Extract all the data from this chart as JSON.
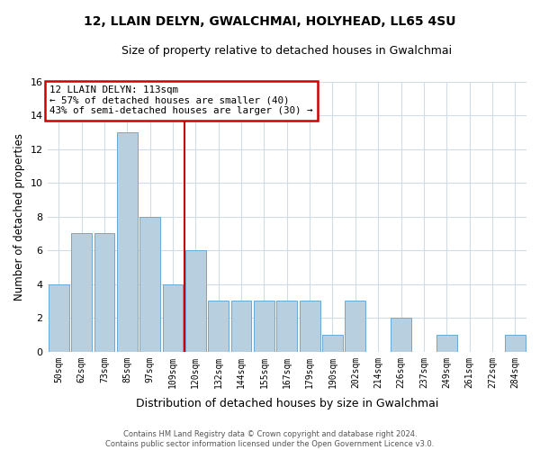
{
  "title": "12, LLAIN DELYN, GWALCHMAI, HOLYHEAD, LL65 4SU",
  "subtitle": "Size of property relative to detached houses in Gwalchmai",
  "xlabel": "Distribution of detached houses by size in Gwalchmai",
  "ylabel": "Number of detached properties",
  "bin_labels": [
    "50sqm",
    "62sqm",
    "73sqm",
    "85sqm",
    "97sqm",
    "109sqm",
    "120sqm",
    "132sqm",
    "144sqm",
    "155sqm",
    "167sqm",
    "179sqm",
    "190sqm",
    "202sqm",
    "214sqm",
    "226sqm",
    "237sqm",
    "249sqm",
    "261sqm",
    "272sqm",
    "284sqm"
  ],
  "bin_counts": [
    4,
    7,
    7,
    13,
    8,
    4,
    6,
    3,
    3,
    3,
    3,
    3,
    1,
    3,
    0,
    2,
    0,
    1,
    0,
    0,
    1
  ],
  "bar_color": "#b8cfe0",
  "bar_edge_color": "#6aaad4",
  "property_line_x": 5.5,
  "annotation_title": "12 LLAIN DELYN: 113sqm",
  "annotation_line1": "← 57% of detached houses are smaller (40)",
  "annotation_line2": "43% of semi-detached houses are larger (30) →",
  "annotation_box_color": "#ffffff",
  "annotation_box_edge_color": "#cc0000",
  "red_line_color": "#cc0000",
  "ylim": [
    0,
    16
  ],
  "yticks": [
    0,
    2,
    4,
    6,
    8,
    10,
    12,
    14,
    16
  ],
  "footer_line1": "Contains HM Land Registry data © Crown copyright and database right 2024.",
  "footer_line2": "Contains public sector information licensed under the Open Government Licence v3.0.",
  "bg_color": "#ffffff",
  "grid_color": "#d0dce8"
}
